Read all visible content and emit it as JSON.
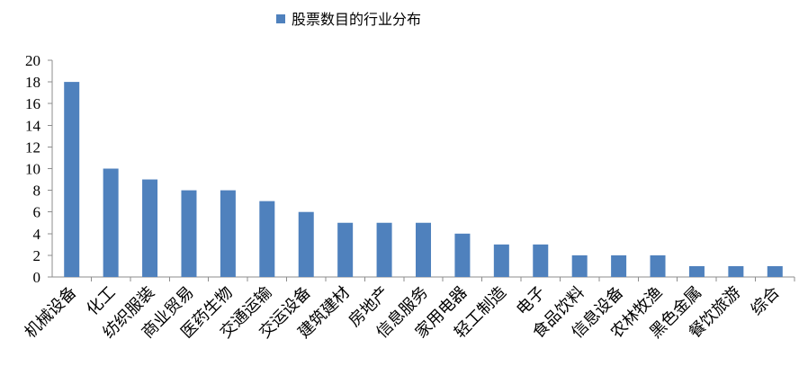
{
  "chart_data": {
    "type": "bar",
    "categories": [
      "机械设备",
      "化工",
      "纺织服装",
      "商业贸易",
      "医药生物",
      "交通运输",
      "交运设备",
      "建筑建材",
      "房地产",
      "信息服务",
      "家用电器",
      "轻工制造",
      "电子",
      "食品饮料",
      "信息设备",
      "农林牧渔",
      "黑色金属",
      "餐饮旅游",
      "综合"
    ],
    "series": [
      {
        "name": "股票数目的行业分布",
        "values": [
          18,
          10,
          9,
          8,
          8,
          7,
          6,
          5,
          5,
          5,
          4,
          3,
          3,
          2,
          2,
          2,
          1,
          1,
          1
        ]
      }
    ],
    "yticks": [
      "0",
      "2",
      "4",
      "6",
      "8",
      "10",
      "12",
      "14",
      "16",
      "18",
      "20"
    ],
    "ylim": [
      0,
      20
    ],
    "grid": false,
    "legend_position": "top-center",
    "colors": {
      "bar": "#4f81bd",
      "axis": "#8c8c8c",
      "text": "#000000"
    }
  }
}
